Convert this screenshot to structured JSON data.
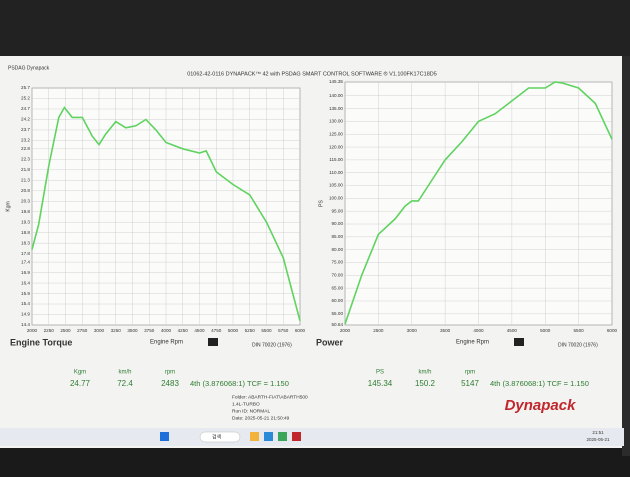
{
  "app_label": "PSDAG Dynapack",
  "window_title": "01062-42-0116 DYNAPACK™ 42 with PSDAG SMART CONTROL SOFTWARE ® V1.100FK17C18D5",
  "chart_data": [
    {
      "type": "line",
      "title": "Engine Torque",
      "x_label": "Engine Rpm",
      "y_label": "Kgm",
      "subtitle": "DIN 70020 (1976)",
      "color": "#5fd35f",
      "grid": true,
      "x": [
        2000,
        2100,
        2250,
        2400,
        2483,
        2600,
        2750,
        2900,
        3000,
        3100,
        3250,
        3400,
        3550,
        3700,
        3850,
        4000,
        4250,
        4500,
        4600,
        4750,
        5000,
        5250,
        5500,
        5750,
        6000
      ],
      "values": [
        18.0,
        19.2,
        22.0,
        24.3,
        24.77,
        24.3,
        24.3,
        23.4,
        23.0,
        23.5,
        24.1,
        23.8,
        23.9,
        24.2,
        23.7,
        23.1,
        22.8,
        22.6,
        22.7,
        21.7,
        21.1,
        20.6,
        19.3,
        17.6,
        14.6
      ],
      "xlim": [
        2000,
        6000
      ],
      "xticks": [
        2000,
        2250,
        2500,
        2750,
        3000,
        3250,
        3500,
        3750,
        4000,
        4250,
        4500,
        4750,
        5000,
        5250,
        5500,
        5750,
        6000
      ],
      "ylim": [
        14.4,
        25.7
      ],
      "yticks": [
        14.4,
        14.9,
        15.4,
        15.9,
        16.4,
        16.9,
        17.4,
        17.8,
        18.3,
        18.8,
        19.3,
        19.8,
        20.3,
        20.8,
        21.3,
        21.8,
        22.3,
        22.8,
        23.2,
        23.7,
        24.2,
        24.7,
        25.2,
        25.7
      ]
    },
    {
      "type": "line",
      "title": "Power",
      "x_label": "Engine Rpm",
      "y_label": "PS",
      "subtitle": "DIN 70020 (1976)",
      "color": "#5fd35f",
      "grid": true,
      "x": [
        2000,
        2250,
        2500,
        2750,
        2900,
        3000,
        3100,
        3250,
        3500,
        3750,
        4000,
        4250,
        4500,
        4750,
        5000,
        5147,
        5250,
        5500,
        5750,
        6000
      ],
      "values": [
        51,
        70,
        86,
        92,
        97,
        99,
        99,
        105,
        115,
        122,
        130,
        133,
        138,
        143,
        143,
        145.34,
        145,
        143,
        137,
        123
      ],
      "xlim": [
        2000,
        6000
      ],
      "xticks": [
        2000,
        2500,
        3000,
        3500,
        4000,
        4500,
        5000,
        5500,
        6000
      ],
      "ylim": [
        50.64,
        145.35
      ],
      "yticks": [
        {
          "value": 50.64,
          "label": "50.64"
        },
        {
          "value": 55,
          "label": "55.00"
        },
        {
          "value": 60,
          "label": "60.00"
        },
        {
          "value": 65,
          "label": "65.00"
        },
        {
          "value": 70,
          "label": "70.00"
        },
        {
          "value": 75,
          "label": "75.00"
        },
        {
          "value": 80,
          "label": "80.00"
        },
        {
          "value": 85,
          "label": "85.00"
        },
        {
          "value": 90,
          "label": "90.00"
        },
        {
          "value": 95,
          "label": "95.00"
        },
        {
          "value": 100,
          "label": "100.00"
        },
        {
          "value": 105,
          "label": "105.00"
        },
        {
          "value": 110,
          "label": "110.00"
        },
        {
          "value": 115,
          "label": "115.00"
        },
        {
          "value": 120,
          "label": "120.00"
        },
        {
          "value": 125,
          "label": "125.00"
        },
        {
          "value": 130,
          "label": "130.00"
        },
        {
          "value": 135,
          "label": "135.00"
        },
        {
          "value": 140,
          "label": "140.00"
        },
        {
          "value": 145.35,
          "label": "145.35"
        }
      ]
    }
  ],
  "readouts": [
    {
      "headers": [
        "Kgm",
        "km/h",
        "rpm"
      ],
      "values": [
        "24.77",
        "72.4",
        "2483"
      ],
      "gear": "4th (3.876068:1) TCF = 1.150"
    },
    {
      "headers": [
        "PS",
        "km/h",
        "rpm"
      ],
      "values": [
        "145.34",
        "150.2",
        "5147"
      ],
      "gear": "4th (3.876068:1) TCF = 1.150"
    }
  ],
  "info": [
    "Folder: ABARTH-FIAT\\ABARTH500",
    "1.4L-TURBO",
    "Run ID: NORMAL",
    "Date: 2025-05-21 21:50:49"
  ],
  "logo": "Dynapack",
  "taskbar": {
    "search": "검색",
    "time": "21:51",
    "date": "2025-05-21"
  }
}
